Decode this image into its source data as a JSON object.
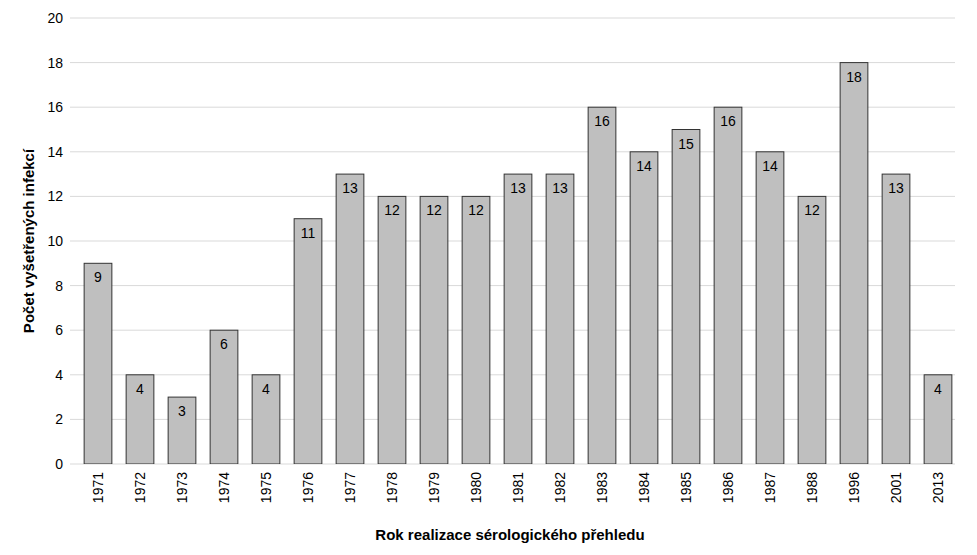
{
  "chart_data": {
    "type": "bar",
    "x_label": "Rok realizace sérologického přehledu",
    "y_label": "Počet vyšetřených infekcí",
    "categories": [
      "1971",
      "1972",
      "1973",
      "1974",
      "1975",
      "1976",
      "1977",
      "1978",
      "1979",
      "1980",
      "1981",
      "1982",
      "1983",
      "1984",
      "1985",
      "1986",
      "1987",
      "1988",
      "1996",
      "2001",
      "2013"
    ],
    "values": [
      9,
      4,
      3,
      6,
      4,
      11,
      13,
      12,
      12,
      12,
      13,
      13,
      16,
      14,
      15,
      16,
      14,
      12,
      18,
      13,
      4
    ],
    "color": "#bfbfbf",
    "ylim": [
      0,
      20
    ],
    "yticks": [
      0,
      2,
      4,
      6,
      8,
      10,
      12,
      14,
      16,
      18,
      20
    ],
    "grid": true,
    "data_labels": true
  }
}
